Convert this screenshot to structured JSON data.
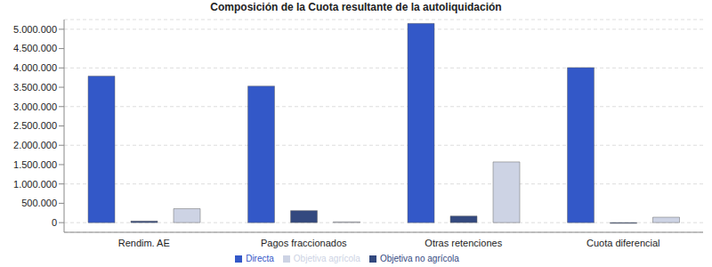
{
  "chart_data": {
    "type": "bar",
    "title": "Composición de la Cuota resultante de la autoliquidación",
    "categories": [
      "Rendim. AE",
      "Pagos fraccionados",
      "Otras retenciones",
      "Cuota diferencial"
    ],
    "series": [
      {
        "name": "Directa",
        "color": "#3358c8",
        "values": [
          3790000,
          3530000,
          5150000,
          4010000
        ]
      },
      {
        "name": "Objetiva no agrícola",
        "color": "#33497f",
        "values": [
          40000,
          310000,
          170000,
          -20000
        ]
      },
      {
        "name": "Objetiva agrícola",
        "color": "#cdd3e4",
        "values": [
          360000,
          20000,
          1570000,
          140000
        ]
      }
    ],
    "ylim": [
      -250000,
      5250000
    ],
    "yticks": [
      {
        "value": 0,
        "label": "0"
      },
      {
        "value": 500000,
        "label": "500.000"
      },
      {
        "value": 1000000,
        "label": "1.000.000"
      },
      {
        "value": 1500000,
        "label": "1.500.000"
      },
      {
        "value": 2000000,
        "label": "2.000.000"
      },
      {
        "value": 2500000,
        "label": "2.500.000"
      },
      {
        "value": 3000000,
        "label": "3.000.000"
      },
      {
        "value": 3500000,
        "label": "3.500.000"
      },
      {
        "value": 4000000,
        "label": "4.000.000"
      },
      {
        "value": 4500000,
        "label": "4.500.000"
      },
      {
        "value": 5000000,
        "label": "5.000.000"
      }
    ],
    "grid": true,
    "legend": "bottom"
  }
}
